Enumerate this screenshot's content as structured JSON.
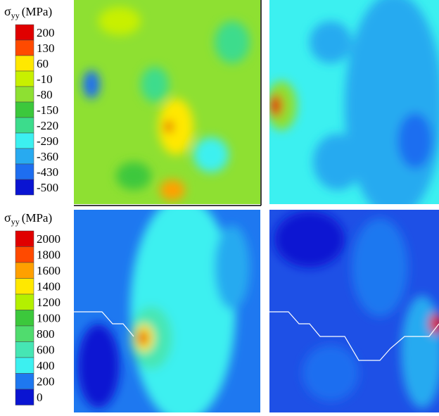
{
  "legends": [
    {
      "title": {
        "symbol": "σ",
        "subscript": "yy",
        "unit": "(MPa)"
      },
      "levels": [
        {
          "label": 200,
          "color": "#e00000"
        },
        {
          "label": 130,
          "color": "#ff4a00"
        },
        {
          "label": 60,
          "color": "#ffe800"
        },
        {
          "label": -10,
          "color": "#c8f000"
        },
        {
          "label": -80,
          "color": "#8ee032"
        },
        {
          "label": -150,
          "color": "#3cc83c"
        },
        {
          "label": -220,
          "color": "#3cdc8c"
        },
        {
          "label": -290,
          "color": "#3cf0f0"
        },
        {
          "label": -360,
          "color": "#28aaf0"
        },
        {
          "label": -430,
          "color": "#1e6ef0"
        },
        {
          "label": -500,
          "color": "#0a14d2"
        }
      ]
    },
    {
      "title": {
        "symbol": "σ",
        "subscript": "yy",
        "unit": "(MPa)"
      },
      "levels": [
        {
          "label": 2000,
          "color": "#e00000"
        },
        {
          "label": 1800,
          "color": "#ff4a00"
        },
        {
          "label": 1600,
          "color": "#ffa000"
        },
        {
          "label": 1400,
          "color": "#ffe800"
        },
        {
          "label": 1200,
          "color": "#b4f000"
        },
        {
          "label": 1000,
          "color": "#3cc83c"
        },
        {
          "label": 800,
          "color": "#50dc6e"
        },
        {
          "label": 600,
          "color": "#46e6b4"
        },
        {
          "label": 400,
          "color": "#3cf0f0"
        },
        {
          "label": 200,
          "color": "#1e78f0"
        },
        {
          "label": 0,
          "color": "#0a14d2"
        }
      ]
    }
  ]
}
